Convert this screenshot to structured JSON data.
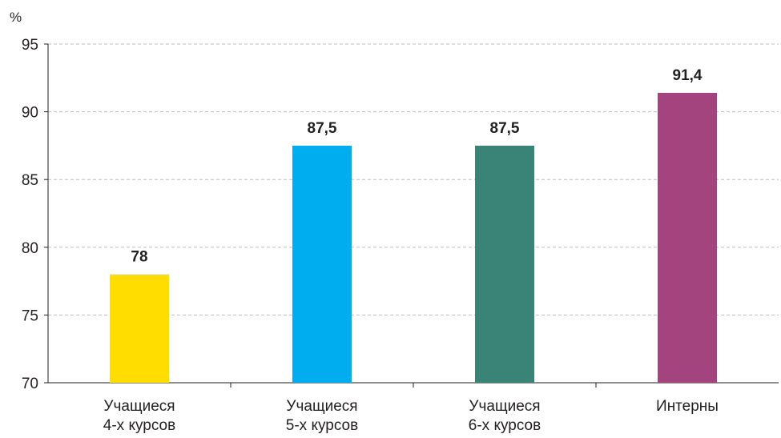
{
  "chart_data": {
    "type": "bar",
    "title": "",
    "xlabel": "",
    "ylabel": "%",
    "ylim": [
      70,
      95
    ],
    "yticks": [
      70,
      75,
      80,
      85,
      90,
      95
    ],
    "grid": true,
    "categories": [
      [
        "Учащиеся",
        "4-х курсов"
      ],
      [
        "Учащиеся",
        "5-х курсов"
      ],
      [
        "Учащиеся",
        "6-х курсов"
      ],
      [
        "Интерны"
      ]
    ],
    "values": [
      78,
      87.5,
      87.5,
      91.4
    ],
    "value_labels": [
      "78",
      "87,5",
      "87,5",
      "91,4"
    ],
    "colors": [
      "#ffdd00",
      "#00aeef",
      "#3a8477",
      "#a3447f"
    ]
  }
}
